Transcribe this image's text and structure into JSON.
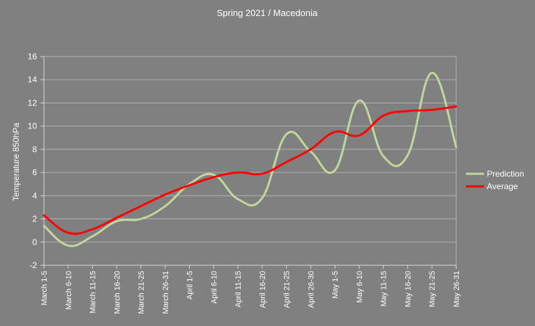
{
  "chart_data": {
    "type": "line",
    "title": "Spring 2021 / Macedonia",
    "xlabel": "",
    "ylabel": "Temperature 850hPa",
    "ylim": [
      -2,
      16
    ],
    "yticks": [
      -2,
      0,
      2,
      4,
      6,
      8,
      10,
      12,
      14,
      16
    ],
    "categories": [
      "March 1-5",
      "March 6-10",
      "March 11-15",
      "March 16-20",
      "March 21-25",
      "March 26-31",
      "April 1-5",
      "April 6-10",
      "April 11-15",
      "April 16-20",
      "April 21-25",
      "April 26-30",
      "May 1-5",
      "May 6-10",
      "May 11-15",
      "May 16-20",
      "May 21-25",
      "May 26-31"
    ],
    "series": [
      {
        "name": "Prediction",
        "color": "#c4d79b",
        "values": [
          1.4,
          -0.3,
          0.5,
          1.8,
          2.0,
          3.1,
          5.0,
          5.8,
          3.7,
          3.8,
          9.3,
          7.8,
          6.2,
          12.2,
          7.4,
          7.5,
          14.6,
          8.2
        ]
      },
      {
        "name": "Average",
        "color": "#ff0000",
        "values": [
          2.3,
          0.8,
          1.1,
          2.1,
          3.1,
          4.1,
          4.9,
          5.6,
          6.0,
          5.9,
          6.9,
          8.0,
          9.5,
          9.2,
          10.9,
          11.3,
          11.4,
          11.7
        ]
      }
    ],
    "legend_position": "right",
    "grid": true
  }
}
